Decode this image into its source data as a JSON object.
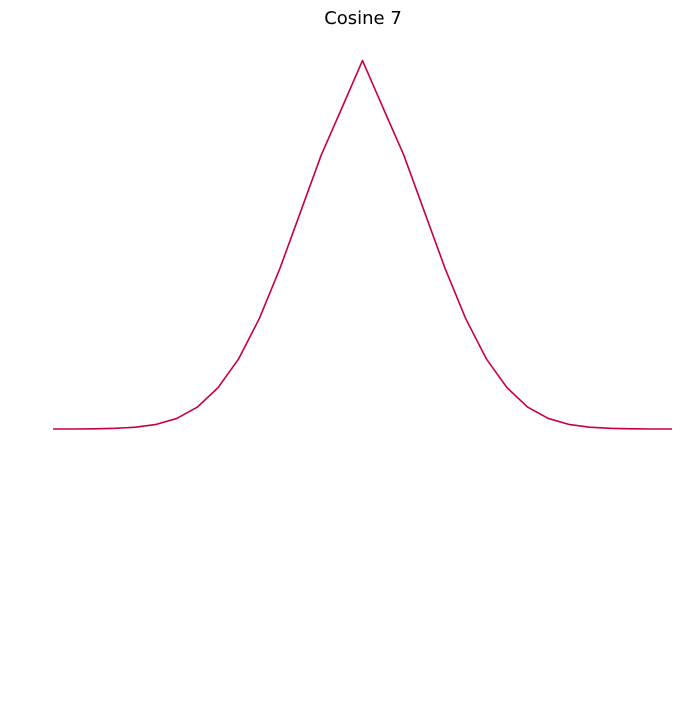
{
  "chart_data": {
    "type": "line",
    "title": "Cosine 7",
    "xlabel": "",
    "ylabel": "",
    "grid": false,
    "axes_visible": false,
    "xlim": [
      -3.14159,
      3.14159
    ],
    "ylim": [
      -1,
      1
    ],
    "series": [
      {
        "color": "#c8003c",
        "x": [
          -3.14159,
          -2.93215,
          -2.72271,
          -2.51327,
          -2.30383,
          -2.0944,
          -1.88496,
          -1.67552,
          -1.46608,
          -1.25664,
          -1.0472,
          -0.83776,
          -0.62832,
          -0.41888,
          -0.20944,
          0.0,
          0.20944,
          0.41888,
          0.62832,
          0.83776,
          1.0472,
          1.25664,
          1.46608,
          1.67552,
          1.88496,
          2.0944,
          2.30383,
          2.51327,
          2.72271,
          2.93215,
          3.14159
        ],
        "y": [
          0.0,
          0.0,
          0.0005,
          0.0016,
          0.0045,
          0.0115,
          0.0265,
          0.055,
          0.1037,
          0.176,
          0.2768,
          0.4027,
          0.5446,
          0.6866,
          0.8045,
          0.9235,
          0.8045,
          0.6866,
          0.5446,
          0.4027,
          0.2768,
          0.176,
          0.1037,
          0.055,
          0.0265,
          0.0115,
          0.0045,
          0.0016,
          0.0005,
          0.0,
          0.0
        ]
      }
    ]
  }
}
